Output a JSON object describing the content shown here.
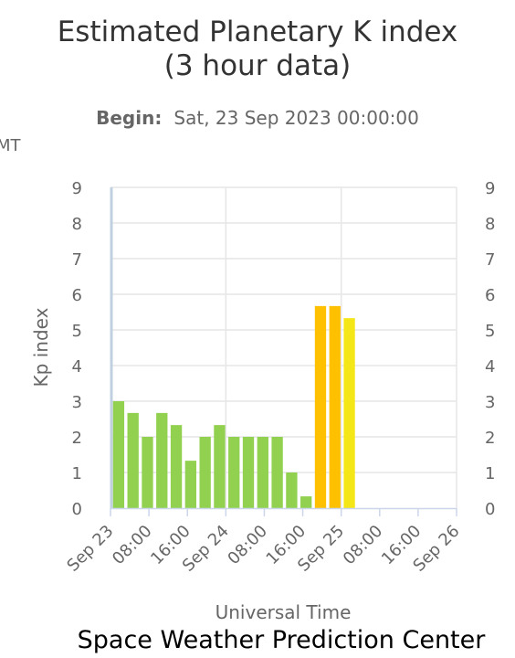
{
  "chart_data": {
    "type": "bar",
    "title_line1": "Estimated Planetary K index",
    "title_line2": "(3 hour data)",
    "subtitle": {
      "label": "Begin:",
      "value": "Sat, 23 Sep 2023 00:00:00"
    },
    "clipped_left_text": "MT",
    "xlabel": "Universal Time",
    "ylabel": "Kp index",
    "ylim": [
      0,
      9
    ],
    "yticks": [
      "0",
      "1",
      "2",
      "3",
      "4",
      "5",
      "6",
      "7",
      "8",
      "9"
    ],
    "x_tick_labels": [
      "Sep 23",
      "08:00",
      "16:00",
      "Sep 24",
      "08:00",
      "16:00",
      "Sep 25",
      "08:00",
      "16:00",
      "Sep 26"
    ],
    "x_tick_hours": [
      0,
      8,
      16,
      24,
      32,
      40,
      48,
      56,
      64,
      72
    ],
    "x_range_hours": [
      0,
      72
    ],
    "gridlines": true,
    "bars": [
      {
        "start_hour": 0,
        "value": 3.0,
        "color": "#92d050"
      },
      {
        "start_hour": 3,
        "value": 2.67,
        "color": "#92d050"
      },
      {
        "start_hour": 6,
        "value": 2.0,
        "color": "#92d050"
      },
      {
        "start_hour": 9,
        "value": 2.67,
        "color": "#92d050"
      },
      {
        "start_hour": 12,
        "value": 2.33,
        "color": "#92d050"
      },
      {
        "start_hour": 15,
        "value": 1.33,
        "color": "#92d050"
      },
      {
        "start_hour": 18,
        "value": 2.0,
        "color": "#92d050"
      },
      {
        "start_hour": 21,
        "value": 2.33,
        "color": "#92d050"
      },
      {
        "start_hour": 24,
        "value": 2.0,
        "color": "#92d050"
      },
      {
        "start_hour": 27,
        "value": 2.0,
        "color": "#92d050"
      },
      {
        "start_hour": 30,
        "value": 2.0,
        "color": "#92d050"
      },
      {
        "start_hour": 33,
        "value": 2.0,
        "color": "#92d050"
      },
      {
        "start_hour": 36,
        "value": 1.0,
        "color": "#92d050"
      },
      {
        "start_hour": 39,
        "value": 0.33,
        "color": "#92d050"
      },
      {
        "start_hour": 42,
        "value": 5.67,
        "color": "#ffc000"
      },
      {
        "start_hour": 45,
        "value": 5.67,
        "color": "#ffc000"
      },
      {
        "start_hour": 48,
        "value": 5.33,
        "color": "#f5e617"
      }
    ]
  },
  "credit": "Space Weather Prediction Center",
  "colors": {
    "grid": "#e6e6e6",
    "axis": "#ccd6eb",
    "plot_left_edge": "#c0d0e0",
    "text": "#333333",
    "muted_text": "#666666"
  }
}
